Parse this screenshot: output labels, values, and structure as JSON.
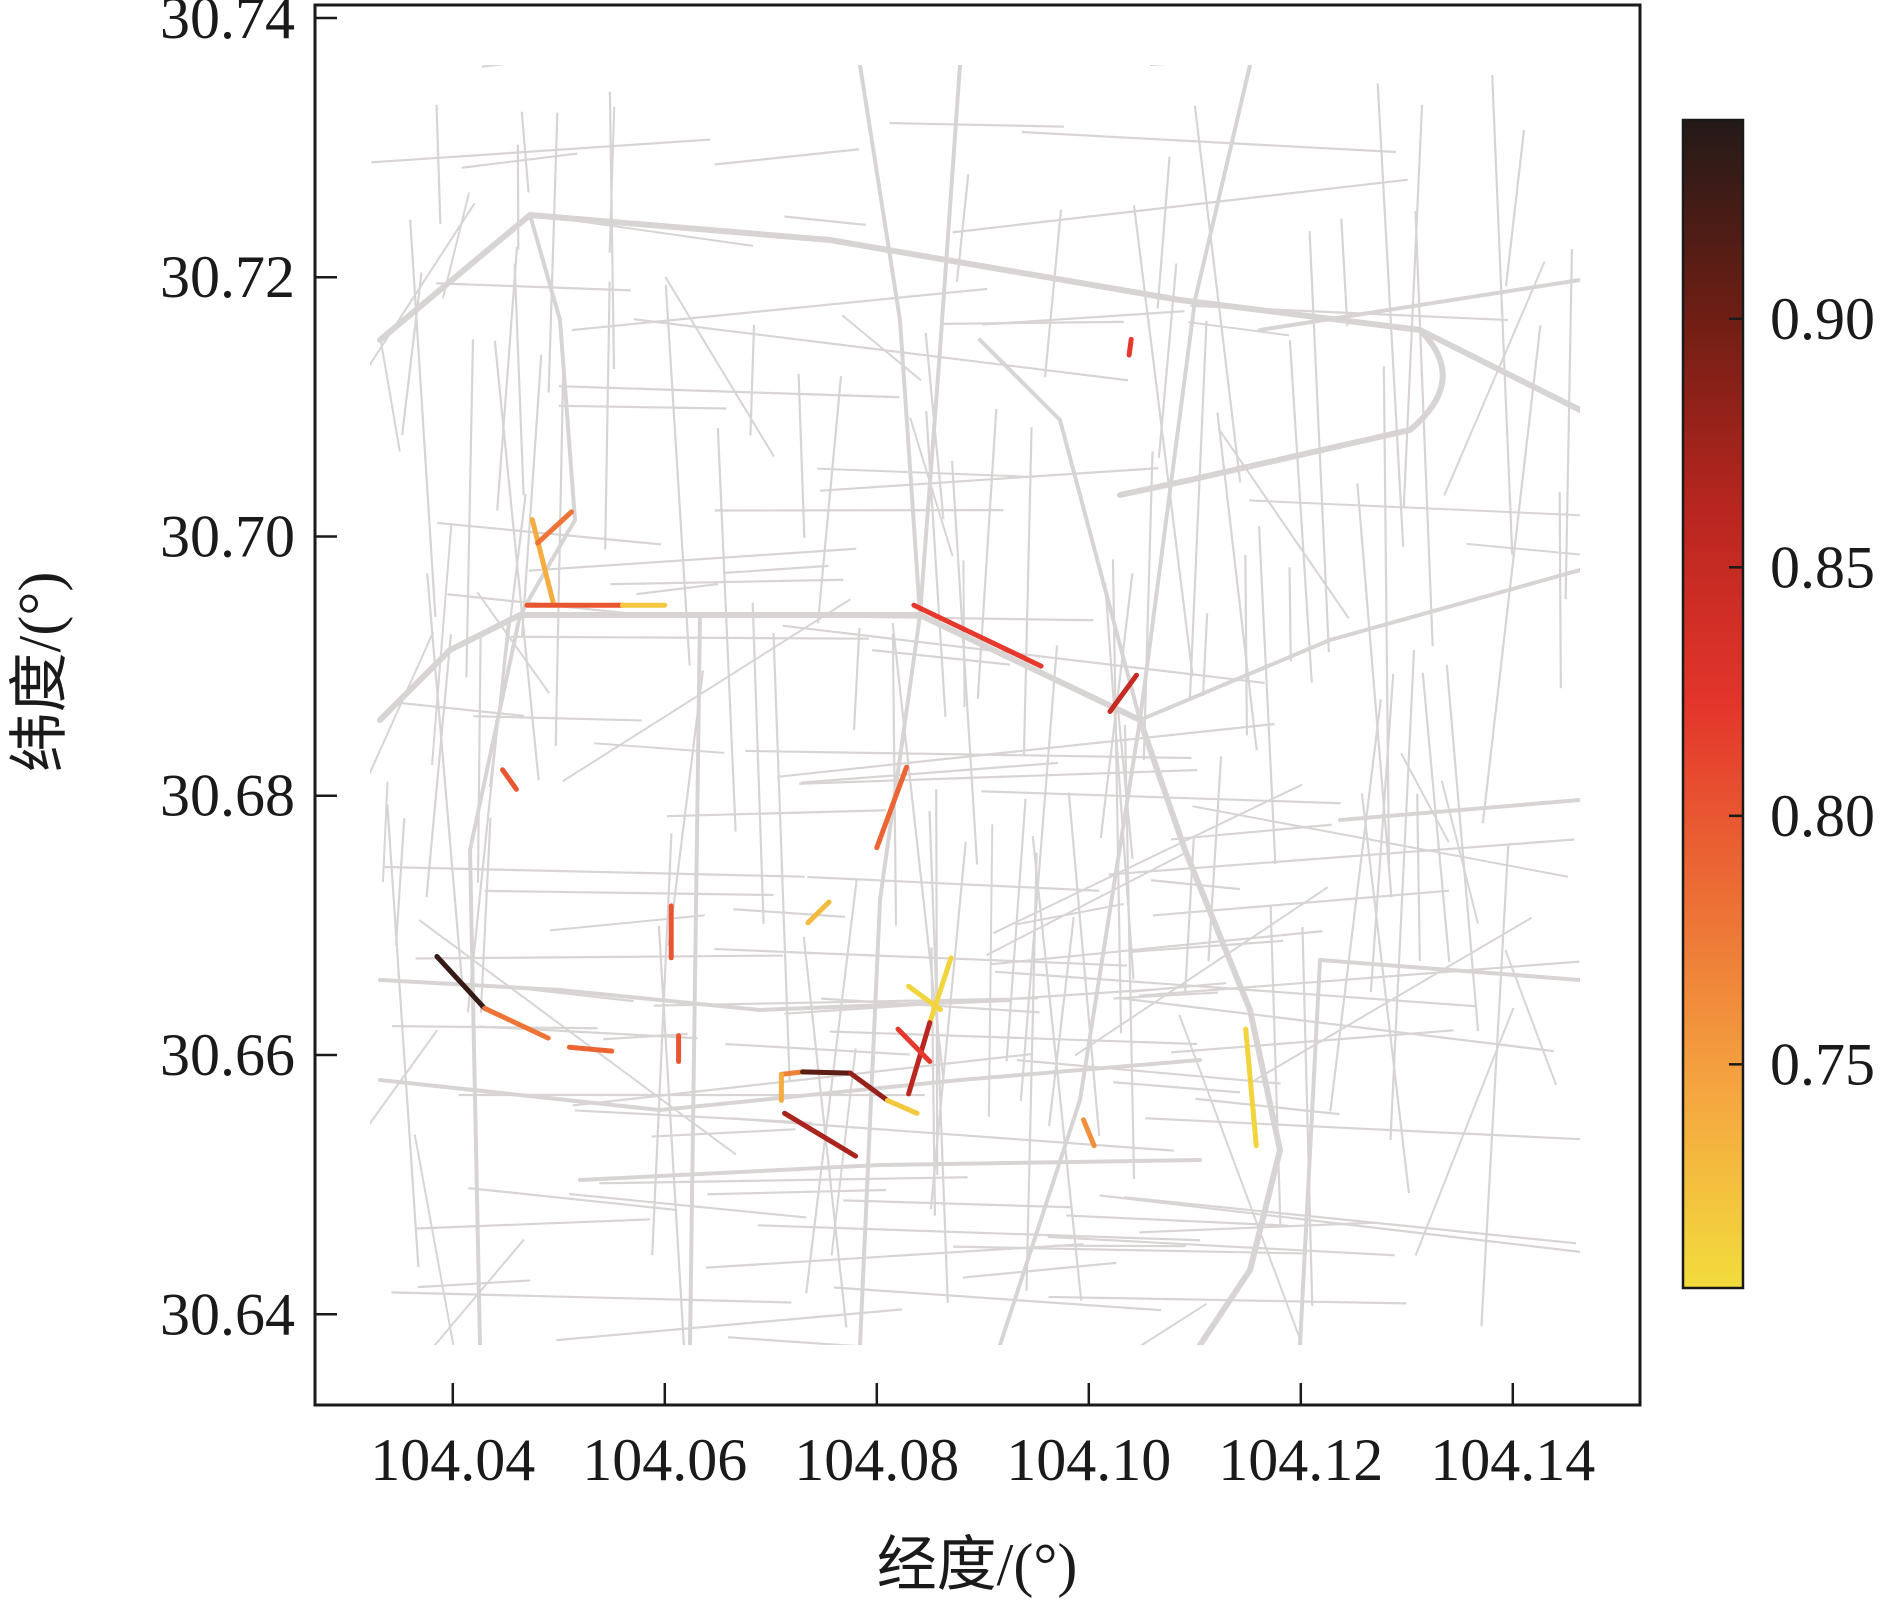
{
  "chart_data": {
    "type": "map",
    "xlabel": "经度/(°)",
    "ylabel": "纬度/(°)",
    "x_ticks": [
      "104.04",
      "104.06",
      "104.08",
      "104.10",
      "104.12",
      "104.14"
    ],
    "y_ticks": [
      "30.74",
      "30.72",
      "30.70",
      "30.68",
      "30.66",
      "30.64"
    ],
    "xlim": [
      104.027,
      104.152
    ],
    "ylim": [
      30.633,
      30.741
    ],
    "colorbar": {
      "ticks": [
        "0.90",
        "0.85",
        "0.80",
        "0.75"
      ],
      "min": 0.705,
      "max": 0.94,
      "colors": [
        "#f2dc3c",
        "#f5a640",
        "#ec6f35",
        "#e3352b",
        "#b8261f",
        "#6e1e14",
        "#231a18"
      ]
    },
    "base_network_color": "#d9d4d4",
    "highlighted_segments": [
      {
        "path": [
          [
            104.0475,
            30.7013
          ],
          [
            104.0495,
            30.6948
          ]
        ],
        "value": 0.74
      },
      {
        "path": [
          [
            104.048,
            30.6995
          ],
          [
            104.0512,
            30.7019
          ]
        ],
        "value": 0.78
      },
      {
        "path": [
          [
            104.047,
            30.6947
          ],
          [
            104.056,
            30.6947
          ]
        ],
        "value": 0.8
      },
      {
        "path": [
          [
            104.056,
            30.6947
          ],
          [
            104.06,
            30.6947
          ]
        ],
        "value": 0.72
      },
      {
        "path": [
          [
            104.0835,
            30.6947
          ],
          [
            104.0955,
            30.69
          ]
        ],
        "value": 0.82
      },
      {
        "path": [
          [
            104.102,
            30.6865
          ],
          [
            104.1045,
            30.6893
          ]
        ],
        "value": 0.85
      },
      {
        "path": [
          [
            104.1038,
            30.714
          ],
          [
            104.104,
            30.7152
          ]
        ],
        "value": 0.82
      },
      {
        "path": [
          [
            104.0447,
            30.682
          ],
          [
            104.046,
            30.6805
          ]
        ],
        "value": 0.8
      },
      {
        "path": [
          [
            104.0828,
            30.6822
          ],
          [
            104.08,
            30.676
          ]
        ],
        "value": 0.79
      },
      {
        "path": [
          [
            104.0755,
            30.6718
          ],
          [
            104.0735,
            30.6702
          ]
        ],
        "value": 0.73
      },
      {
        "path": [
          [
            104.0606,
            30.6715
          ],
          [
            104.0606,
            30.6675
          ]
        ],
        "value": 0.8
      },
      {
        "path": [
          [
            104.0613,
            30.6615
          ],
          [
            104.0613,
            30.6595
          ]
        ],
        "value": 0.8
      },
      {
        "path": [
          [
            104.0385,
            30.6676
          ],
          [
            104.043,
            30.6636
          ]
        ],
        "value": 0.93
      },
      {
        "path": [
          [
            104.043,
            30.6636
          ],
          [
            104.049,
            30.6613
          ]
        ],
        "value": 0.78
      },
      {
        "path": [
          [
            104.051,
            30.6606
          ],
          [
            104.055,
            30.6603
          ]
        ],
        "value": 0.79
      },
      {
        "path": [
          [
            104.087,
            30.6675
          ],
          [
            104.085,
            30.6625
          ]
        ],
        "value": 0.71
      },
      {
        "path": [
          [
            104.083,
            30.6653
          ],
          [
            104.086,
            30.6635
          ]
        ],
        "value": 0.71
      },
      {
        "path": [
          [
            104.085,
            30.6625
          ],
          [
            104.083,
            30.657
          ]
        ],
        "value": 0.86
      },
      {
        "path": [
          [
            104.082,
            30.662
          ],
          [
            104.085,
            30.6595
          ]
        ],
        "value": 0.82
      },
      {
        "path": [
          [
            104.071,
            30.6585
          ],
          [
            104.073,
            30.6587
          ]
        ],
        "value": 0.77
      },
      {
        "path": [
          [
            104.071,
            30.6585
          ],
          [
            104.071,
            30.6565
          ]
        ],
        "value": 0.74
      },
      {
        "path": [
          [
            104.073,
            30.6587
          ],
          [
            104.0775,
            30.6586
          ]
        ],
        "value": 0.91
      },
      {
        "path": [
          [
            104.0775,
            30.6586
          ],
          [
            104.081,
            30.6565
          ]
        ],
        "value": 0.88
      },
      {
        "path": [
          [
            104.081,
            30.6565
          ],
          [
            104.0838,
            30.6555
          ]
        ],
        "value": 0.72
      },
      {
        "path": [
          [
            104.0713,
            30.6555
          ],
          [
            104.078,
            30.6522
          ]
        ],
        "value": 0.87
      },
      {
        "path": [
          [
            104.0995,
            30.655
          ],
          [
            104.1005,
            30.653
          ]
        ],
        "value": 0.76
      },
      {
        "path": [
          [
            104.1148,
            30.662
          ],
          [
            104.1158,
            30.653
          ]
        ],
        "value": 0.71
      }
    ]
  }
}
